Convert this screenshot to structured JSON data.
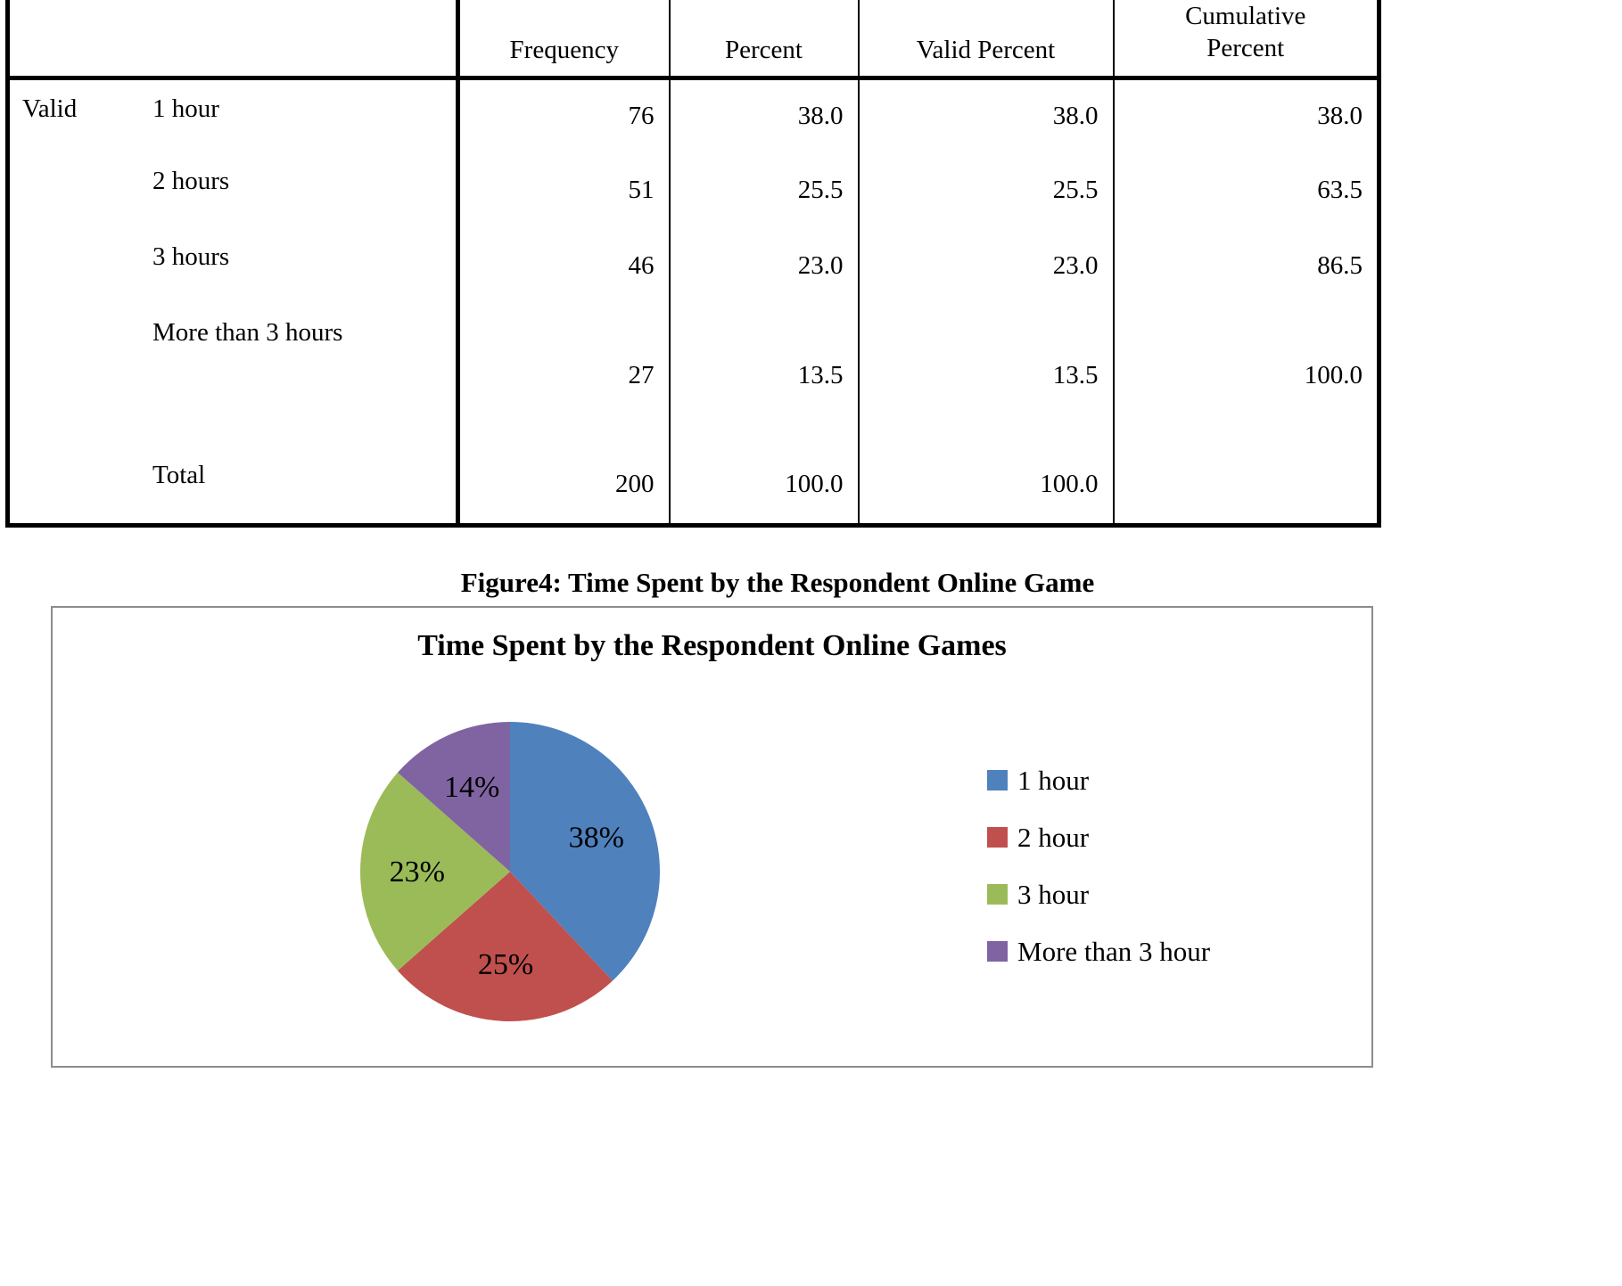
{
  "table": {
    "headers": {
      "frequency": "Frequency",
      "percent": "Percent",
      "valid_percent": "Valid Percent",
      "cumulative_percent": "Cumulative Percent"
    },
    "row_group_label": "Valid",
    "rows": [
      {
        "label": "1 hour",
        "frequency": "76",
        "percent": "38.0",
        "valid_percent": "38.0",
        "cumulative_percent": "38.0"
      },
      {
        "label": "2 hours",
        "frequency": "51",
        "percent": "25.5",
        "valid_percent": "25.5",
        "cumulative_percent": "63.5"
      },
      {
        "label": "3 hours",
        "frequency": "46",
        "percent": "23.0",
        "valid_percent": "23.0",
        "cumulative_percent": "86.5"
      },
      {
        "label": "More than 3 hours",
        "frequency": "27",
        "percent": "13.5",
        "valid_percent": "13.5",
        "cumulative_percent": "100.0"
      },
      {
        "label": "Total",
        "frequency": "200",
        "percent": "100.0",
        "valid_percent": "100.0",
        "cumulative_percent": ""
      }
    ]
  },
  "figure_caption": "Figure4: Time Spent by the Respondent Online Game",
  "chart_data": {
    "type": "pie",
    "title": "Time Spent by the Respondent Online Games",
    "labels": [
      "1 hour",
      "2 hour",
      "3 hour",
      "More than 3 hour"
    ],
    "values": [
      38,
      25.5,
      23,
      13.5
    ],
    "display_labels": [
      "38%",
      "25%",
      "23%",
      "14%"
    ],
    "colors": [
      "#4F81BD",
      "#C0504D",
      "#9BBB59",
      "#8064A2"
    ],
    "legend_position": "right",
    "start_angle_deg": 0,
    "direction": "clockwise",
    "source": "table values: 1 hour 38.0%, 2 hours 25.5%, 3 hours 23.0%, more than 3 hours 13.5%"
  }
}
